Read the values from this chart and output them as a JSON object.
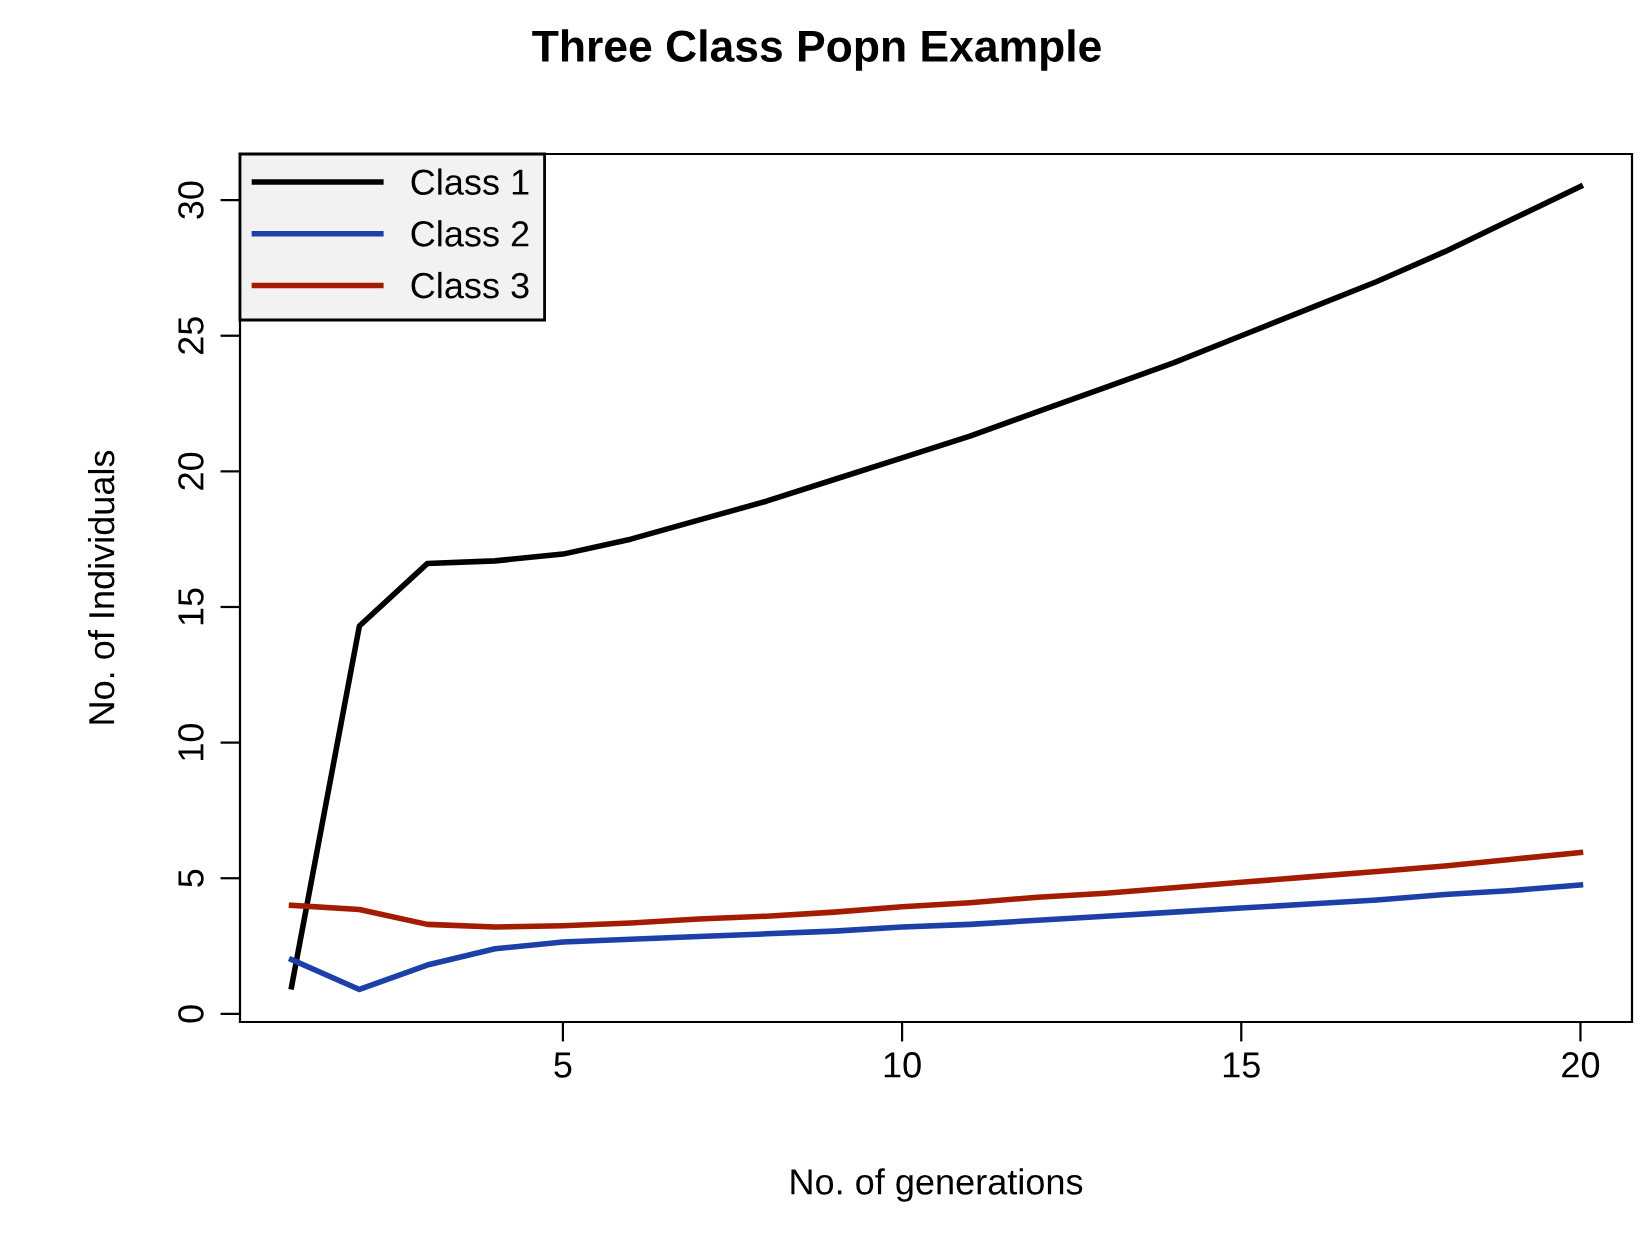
{
  "chart_data": {
    "type": "line",
    "title": "Three Class Popn Example",
    "xlabel": "No. of generations",
    "ylabel": "No. of Individuals",
    "x": [
      1,
      2,
      3,
      4,
      5,
      6,
      7,
      8,
      9,
      10,
      11,
      12,
      13,
      14,
      15,
      16,
      17,
      18,
      19,
      20
    ],
    "series": [
      {
        "name": "Class 1",
        "color": "#000000",
        "values": [
          1.0,
          14.3,
          16.6,
          16.7,
          16.95,
          17.5,
          18.2,
          18.9,
          19.7,
          20.5,
          21.3,
          22.2,
          23.1,
          24.0,
          25.0,
          26.0,
          27.0,
          28.1,
          29.3,
          30.5
        ]
      },
      {
        "name": "Class 2",
        "color": "#1c3fa8",
        "values": [
          2.0,
          0.9,
          1.8,
          2.4,
          2.65,
          2.75,
          2.85,
          2.95,
          3.05,
          3.2,
          3.3,
          3.45,
          3.6,
          3.75,
          3.9,
          4.05,
          4.2,
          4.4,
          4.55,
          4.75
        ]
      },
      {
        "name": "Class 3",
        "color": "#a31c00",
        "values": [
          4.0,
          3.85,
          3.3,
          3.2,
          3.25,
          3.35,
          3.5,
          3.6,
          3.75,
          3.95,
          4.1,
          4.3,
          4.45,
          4.65,
          4.85,
          5.05,
          5.25,
          5.45,
          5.7,
          5.95
        ]
      }
    ],
    "xlim": [
      0.24,
      20.76
    ],
    "xticks": [
      5,
      10,
      15,
      20
    ],
    "ylim": [
      -0.3,
      31.7
    ],
    "yticks": [
      0,
      5,
      10,
      15,
      20,
      25,
      30
    ],
    "grid": false,
    "legend": "top left",
    "line_style": "solid",
    "marker": "none"
  }
}
